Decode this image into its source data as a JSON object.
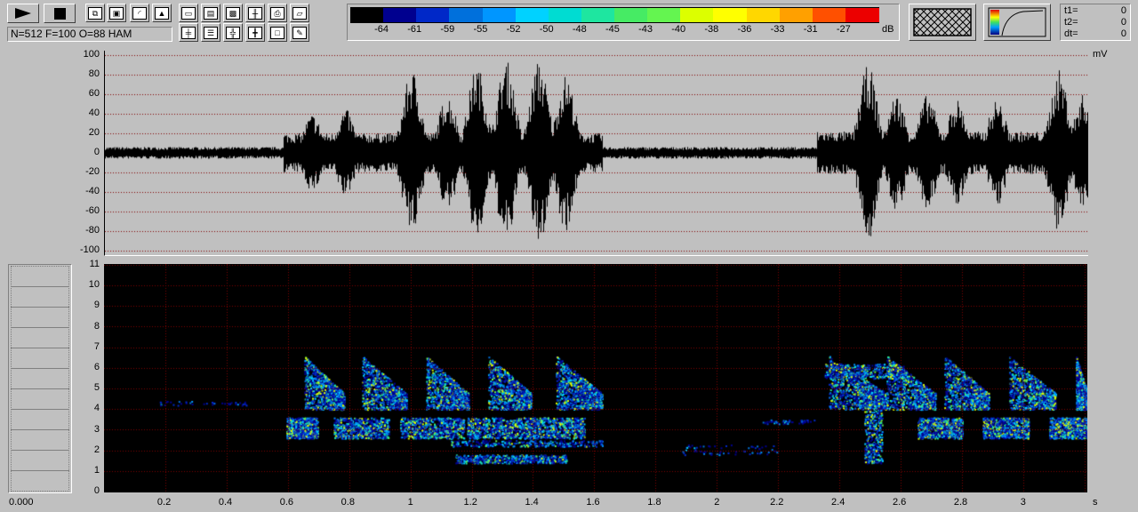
{
  "toolbar": {
    "play_icon": "play-icon",
    "stop_icon": "stop-icon",
    "status_text": "N=512 F=100 O=88 HAM",
    "row1_icons": [
      "copy-icon",
      "save-icon",
      "envelope-icon",
      "spectrum-icon",
      "window-icon",
      "scale-icon",
      "pattern-icon",
      "section-icon",
      "print-icon",
      "open-icon"
    ],
    "row2_icons": [
      "cursor-icon",
      "list-icon",
      "grid-icon",
      "marker-icon",
      "frame-icon",
      "edit-icon"
    ]
  },
  "colorbar": {
    "colors": [
      "#000000",
      "#00008f",
      "#0028c8",
      "#0070dc",
      "#0096ff",
      "#00d2ff",
      "#00dcd2",
      "#1ee6a0",
      "#46eb64",
      "#64f550",
      "#dcff00",
      "#ffff00",
      "#ffd700",
      "#ffa000",
      "#ff5000",
      "#ec0000"
    ],
    "labels": [
      "-64",
      "-61",
      "-59",
      "-55",
      "-52",
      "-50",
      "-48",
      "-45",
      "-43",
      "-40",
      "-38",
      "-36",
      "-33",
      "-31",
      "-27"
    ],
    "unit": "dB"
  },
  "cursor_readout": {
    "t1_label": "t1=",
    "t1": "0",
    "t2_label": "t2=",
    "t2": "0",
    "dt_label": "dt=",
    "dt": "0"
  },
  "waveform": {
    "unit": "mV",
    "y_ticks": [
      "100",
      "80",
      "60",
      "40",
      "20",
      "0",
      "-20",
      "-40",
      "-60",
      "-80",
      "-100"
    ]
  },
  "spectrogram": {
    "freq_ticks": [
      "11",
      "10",
      "9",
      "8",
      "7",
      "6",
      "5",
      "4",
      "3",
      "2",
      "1",
      "0"
    ],
    "time_ticks": [
      "0.2",
      "0.4",
      "0.6",
      "0.8",
      "1",
      "1.2",
      "1.4",
      "1.6",
      "1.8",
      "2",
      "2.2",
      "2.4",
      "2.6",
      "2.8",
      "3"
    ],
    "time_unit": "s"
  },
  "side_panel": {
    "value": "0.000"
  }
}
